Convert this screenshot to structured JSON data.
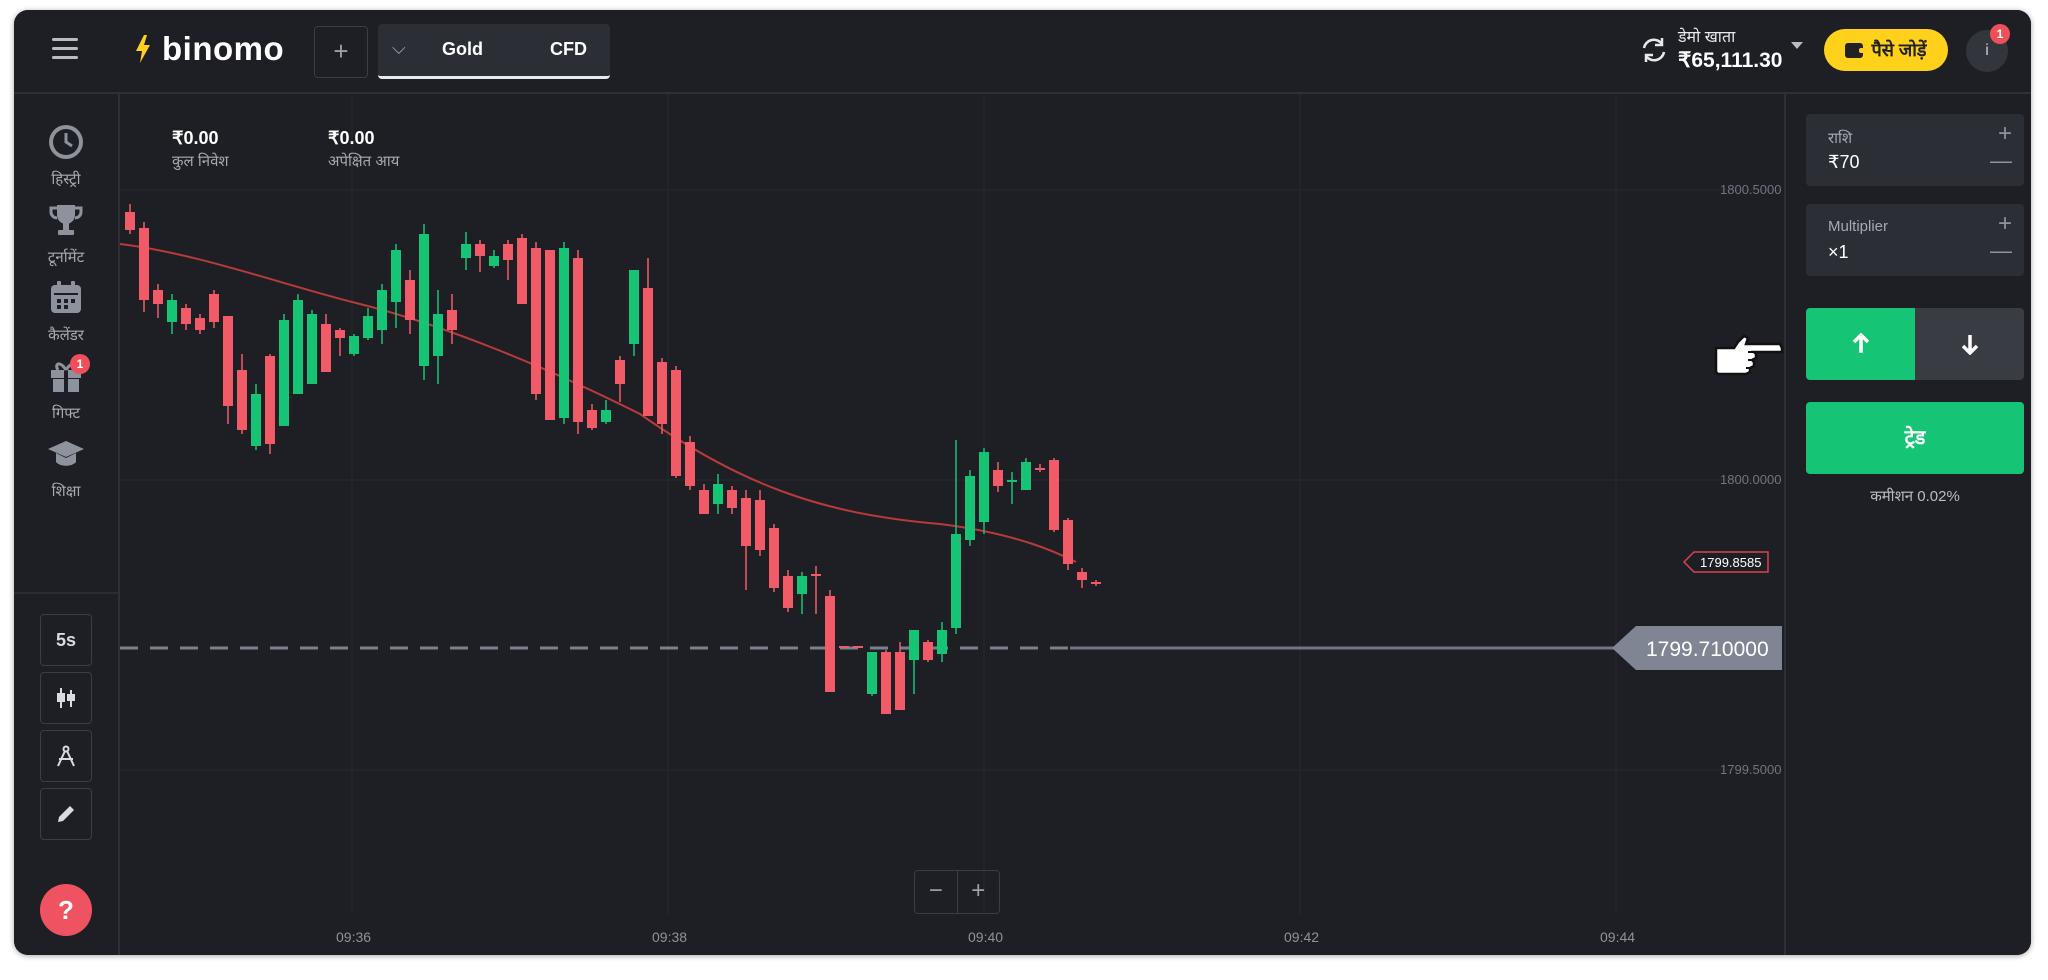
{
  "header": {
    "logo_text": "binomo",
    "add_asset": "+",
    "asset_tab": {
      "name": "Gold",
      "type": "CFD"
    },
    "account_label": "डेमो खाता",
    "balance": "₹65,111.30",
    "deposit_label": "पैसे जोड़ें",
    "avatar_initial": "i",
    "notification_count": "1"
  },
  "sidebar": {
    "items": [
      {
        "label": "हिस्ट्री",
        "icon": "clock-icon"
      },
      {
        "label": "टूर्नामेंट",
        "icon": "trophy-icon"
      },
      {
        "label": "कैलेंडर",
        "icon": "calendar-icon"
      },
      {
        "label": "गिफ्ट",
        "icon": "gift-icon",
        "badge": "1"
      },
      {
        "label": "शिक्षा",
        "icon": "graduation-cap-icon"
      }
    ],
    "tools": {
      "timeframe": "5s",
      "chart_type_icon": "candles-icon",
      "indicators_icon": "compass-icon",
      "drawing_icon": "pencil-icon"
    },
    "help_label": "?"
  },
  "chart": {
    "total_invest_value": "₹0.00",
    "total_invest_label": "कुल निवेश",
    "expected_income_value": "₹0.00",
    "expected_income_label": "अपेक्षित आय",
    "price_labels": [
      "1800.5000",
      "1800.0000",
      "1799.5000"
    ],
    "time_labels": [
      "09:36",
      "09:38",
      "09:40",
      "09:42",
      "09:44"
    ],
    "current_price": "1799.710000",
    "ma_price": "1799.8585",
    "zoom_out": "−",
    "zoom_in": "+",
    "colors": {
      "up": "#16c476",
      "down": "#f05b67",
      "ma": "#b83a3a"
    }
  },
  "panel": {
    "amount_label": "राशि",
    "amount_value": "₹70",
    "multiplier_label": "Multiplier",
    "multiplier_value": "×1",
    "trade_label": "ट्रेड",
    "commission_label": "कमीशन",
    "commission_value": "0.02%"
  }
}
